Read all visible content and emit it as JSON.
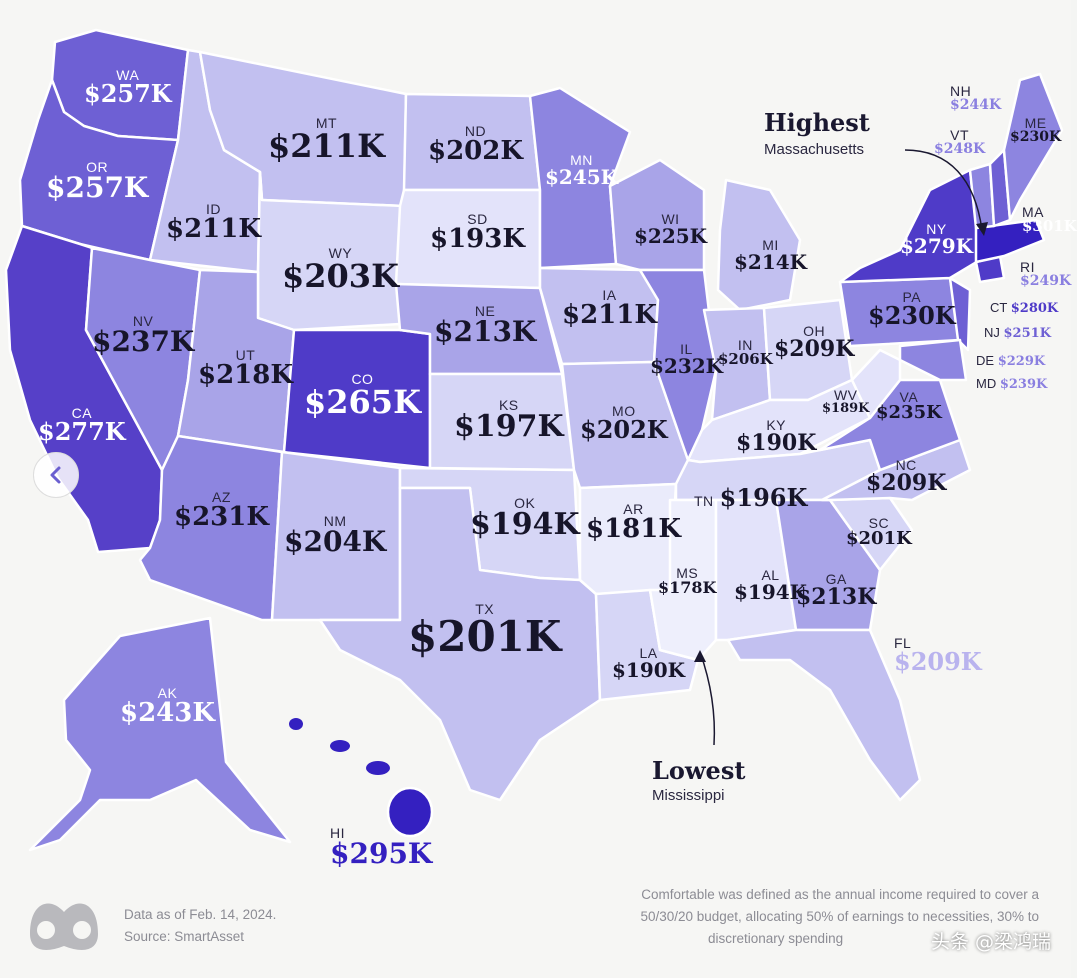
{
  "legend_colors": {
    "lowest": "#e8e9fb",
    "low": "#d6d6f6",
    "mid_low": "#c2c0f0",
    "mid": "#a9a4e8",
    "mid_high": "#8d85e0",
    "high": "#6e60d4",
    "very_high": "#4f3bc8",
    "highest": "#3420c0"
  },
  "states": {
    "WA": {
      "abbr": "WA",
      "value": "$257K"
    },
    "OR": {
      "abbr": "OR",
      "value": "$257K"
    },
    "CA": {
      "abbr": "CA",
      "value": "$277K"
    },
    "ID": {
      "abbr": "ID",
      "value": "$211K"
    },
    "NV": {
      "abbr": "NV",
      "value": "$237K"
    },
    "MT": {
      "abbr": "MT",
      "value": "$211K"
    },
    "WY": {
      "abbr": "WY",
      "value": "$203K"
    },
    "UT": {
      "abbr": "UT",
      "value": "$218K"
    },
    "AZ": {
      "abbr": "AZ",
      "value": "$231K"
    },
    "CO": {
      "abbr": "CO",
      "value": "$265K"
    },
    "NM": {
      "abbr": "NM",
      "value": "$204K"
    },
    "ND": {
      "abbr": "ND",
      "value": "$202K"
    },
    "SD": {
      "abbr": "SD",
      "value": "$193K"
    },
    "NE": {
      "abbr": "NE",
      "value": "$213K"
    },
    "KS": {
      "abbr": "KS",
      "value": "$197K"
    },
    "OK": {
      "abbr": "OK",
      "value": "$194K"
    },
    "TX": {
      "abbr": "TX",
      "value": "$201K"
    },
    "MN": {
      "abbr": "MN",
      "value": "$245K"
    },
    "IA": {
      "abbr": "IA",
      "value": "$211K"
    },
    "MO": {
      "abbr": "MO",
      "value": "$202K"
    },
    "AR": {
      "abbr": "AR",
      "value": "$181K"
    },
    "LA": {
      "abbr": "LA",
      "value": "$190K"
    },
    "WI": {
      "abbr": "WI",
      "value": "$225K"
    },
    "IL": {
      "abbr": "IL",
      "value": "$232K"
    },
    "MI": {
      "abbr": "MI",
      "value": "$214K"
    },
    "IN": {
      "abbr": "IN",
      "value": "$206K"
    },
    "OH": {
      "abbr": "OH",
      "value": "$209K"
    },
    "KY": {
      "abbr": "KY",
      "value": "$190K"
    },
    "TN": {
      "abbr": "TN",
      "value": "$196K"
    },
    "MS": {
      "abbr": "MS",
      "value": "$178K"
    },
    "AL": {
      "abbr": "AL",
      "value": "$194K"
    },
    "GA": {
      "abbr": "GA",
      "value": "$213K"
    },
    "FL": {
      "abbr": "FL",
      "value": "$209K"
    },
    "SC": {
      "abbr": "SC",
      "value": "$201K"
    },
    "NC": {
      "abbr": "NC",
      "value": "$209K"
    },
    "VA": {
      "abbr": "VA",
      "value": "$235K"
    },
    "WV": {
      "abbr": "WV",
      "value": "$189K"
    },
    "PA": {
      "abbr": "PA",
      "value": "$230K"
    },
    "NY": {
      "abbr": "NY",
      "value": "$279K"
    },
    "ME": {
      "abbr": "ME",
      "value": "$230K"
    },
    "NH": {
      "abbr": "NH",
      "value": "$244K"
    },
    "VT": {
      "abbr": "VT",
      "value": "$248K"
    },
    "MA": {
      "abbr": "MA",
      "value": "$301K"
    },
    "RI": {
      "abbr": "RI",
      "value": "$249K"
    },
    "CT": {
      "abbr": "CT",
      "value": "$280K"
    },
    "NJ": {
      "abbr": "NJ",
      "value": "$251K"
    },
    "DE": {
      "abbr": "DE",
      "value": "$229K"
    },
    "MD": {
      "abbr": "MD",
      "value": "$239K"
    },
    "AK": {
      "abbr": "AK",
      "value": "$243K"
    },
    "HI": {
      "abbr": "HI",
      "value": "$295K"
    }
  },
  "callouts": {
    "highest": {
      "title": "Highest",
      "subtitle": "Massachusetts"
    },
    "lowest": {
      "title": "Lowest",
      "subtitle": "Mississippi"
    }
  },
  "footer": {
    "date": "Data as of Feb. 14, 2024.",
    "source": "Source: SmartAsset",
    "note_line1": "Comfortable was defined as the annual income required to cover a",
    "note_line2": "50/30/20 budget, allocating 50% of earnings to necessities, 30% to",
    "note_line3": "discretionary spending"
  },
  "watermark": "头条 @梁鸿瑞",
  "nav": {
    "prev_icon": "chevron-left-icon"
  }
}
